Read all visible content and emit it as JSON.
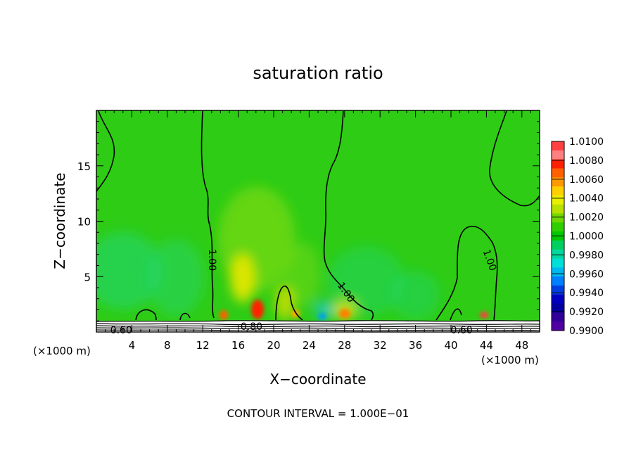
{
  "chart_data": {
    "type": "heatmap",
    "title": "saturation ratio",
    "xlabel": "X−coordinate",
    "ylabel": "Z−coordinate",
    "x_unit_left": "(×1000 m)",
    "x_unit_right": "(×1000 m)",
    "footer": "CONTOUR INTERVAL = 1.000E−01",
    "xlim": [
      0,
      50
    ],
    "ylim": [
      0,
      20
    ],
    "x_ticks": [
      4,
      8,
      12,
      16,
      20,
      24,
      28,
      32,
      36,
      40,
      44,
      48
    ],
    "y_ticks": [
      5,
      10,
      15
    ],
    "x_tick_labels": [
      "4",
      "8",
      "12",
      "16",
      "20",
      "24",
      "28",
      "32",
      "36",
      "40",
      "44",
      "48"
    ],
    "y_tick_labels": [
      "5",
      "10",
      "15"
    ],
    "colorbar": {
      "levels": [
        1.01,
        1.008,
        1.006,
        1.004,
        1.002,
        1.0,
        0.998,
        0.996,
        0.994,
        0.992,
        0.99
      ],
      "labels": [
        "1.0100",
        "1.0080",
        "1.0060",
        "1.0040",
        "1.0020",
        "1.0000",
        "0.9980",
        "0.9960",
        "0.9940",
        "0.9920",
        "0.9900"
      ],
      "colors": [
        "#ff4040",
        "#ff8080",
        "#ff2000",
        "#ff6000",
        "#ff9900",
        "#ffd000",
        "#e8f000",
        "#b8e000",
        "#70d800",
        "#30d000",
        "#00c800",
        "#00d060",
        "#00d8a0",
        "#00e0d8",
        "#00b8f0",
        "#0080ff",
        "#0040e0",
        "#0000c0",
        "#0000a0",
        "#300098",
        "#5000a0"
      ]
    },
    "contour_labels": [
      {
        "text": "1.00",
        "x": 13.1,
        "z": 6.5,
        "angle": 90
      },
      {
        "text": "1.00",
        "x": 28.2,
        "z": 3.6,
        "angle": 55
      },
      {
        "text": "1.00",
        "x": 44.4,
        "z": 6.5,
        "angle": 70
      },
      {
        "text": "0.60",
        "x": 2.8,
        "z": 0.2,
        "angle": 0
      },
      {
        "text": "0.80",
        "x": 17.5,
        "z": 0.5,
        "angle": 0
      },
      {
        "text": "0.60",
        "x": 41.2,
        "z": 0.2,
        "angle": 0
      }
    ],
    "hotspots": [
      {
        "x": 15.0,
        "z": 1.5,
        "value": 1.006
      },
      {
        "x": 18.0,
        "z": 1.8,
        "value": 1.008
      },
      {
        "x": 17.0,
        "z": 4.5,
        "value": 1.004
      },
      {
        "x": 28.0,
        "z": 1.8,
        "value": 1.006
      },
      {
        "x": 43.5,
        "z": 1.6,
        "value": 1.008
      }
    ]
  }
}
